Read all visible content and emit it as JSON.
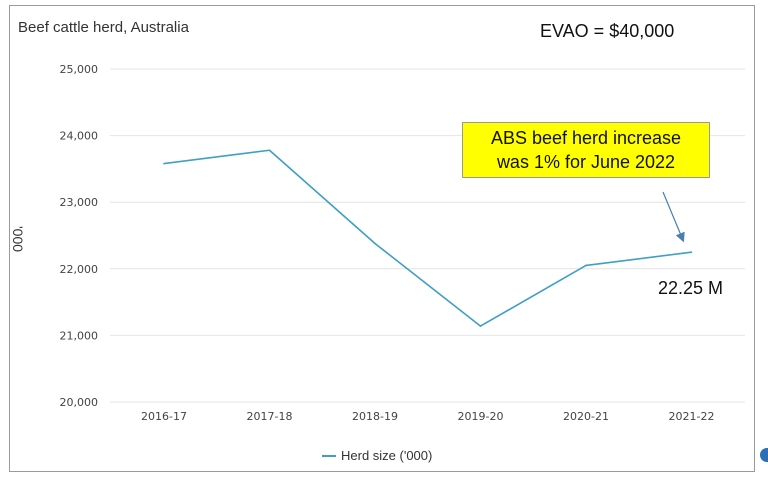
{
  "header": {
    "title": "Beef cattle herd, Australia",
    "evao": "EVAO = $40,000"
  },
  "annotation": {
    "line1": "ABS beef herd increase",
    "line2": "was 1% for June 2022",
    "end_value": "22.25 M"
  },
  "chart_data": {
    "type": "line",
    "title": "Beef cattle herd, Australia",
    "xlabel": "",
    "ylabel": "'000",
    "categories": [
      "2016-17",
      "2017-18",
      "2018-19",
      "2019-20",
      "2020-21",
      "2021-22"
    ],
    "series": [
      {
        "name": "Herd size ('000)",
        "values": [
          23580,
          23780,
          22380,
          21140,
          22050,
          22250
        ]
      }
    ],
    "ylim": [
      20000,
      25000
    ],
    "yticks": [
      "25,000",
      "24,000",
      "23,000",
      "22,000",
      "21,000",
      "20,000"
    ],
    "ytick_values": [
      25000,
      24000,
      23000,
      22000,
      21000,
      20000
    ],
    "grid": true,
    "legend": "bottom-center",
    "line_color": "#3f9fc4"
  }
}
